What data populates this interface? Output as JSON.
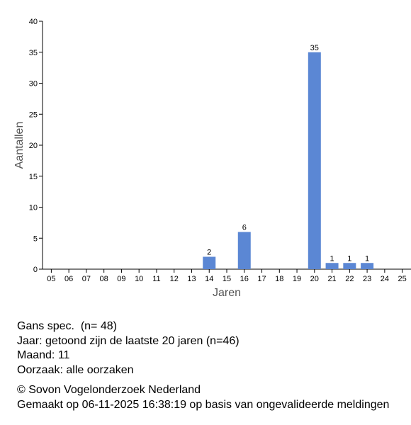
{
  "chart_data": {
    "type": "bar",
    "x_label": "Jaren",
    "y_label": "Aantallen",
    "categories": [
      "05",
      "06",
      "07",
      "08",
      "09",
      "10",
      "11",
      "12",
      "13",
      "14",
      "15",
      "16",
      "17",
      "18",
      "19",
      "20",
      "21",
      "22",
      "23",
      "24",
      "25"
    ],
    "values": [
      null,
      null,
      null,
      null,
      null,
      null,
      null,
      null,
      null,
      2,
      null,
      6,
      null,
      null,
      null,
      35,
      1,
      1,
      1,
      null,
      null
    ],
    "color": "#5b87d4",
    "ylim": [
      0,
      40
    ],
    "yticks": [
      0,
      5,
      10,
      15,
      20,
      25,
      30,
      35,
      40
    ]
  },
  "info": {
    "lines": [
      "Gans spec.  (n= 48)",
      "Jaar: getoond zijn de laatste 20 jaren (n=46)",
      "Maand: 11",
      "Oorzaak: alle oorzaken"
    ],
    "credits": [
      "© Sovon Vogelonderzoek Nederland",
      "Gemaakt op 06-11-2025 16:38:19 op basis van ongevalideerde meldingen"
    ]
  }
}
